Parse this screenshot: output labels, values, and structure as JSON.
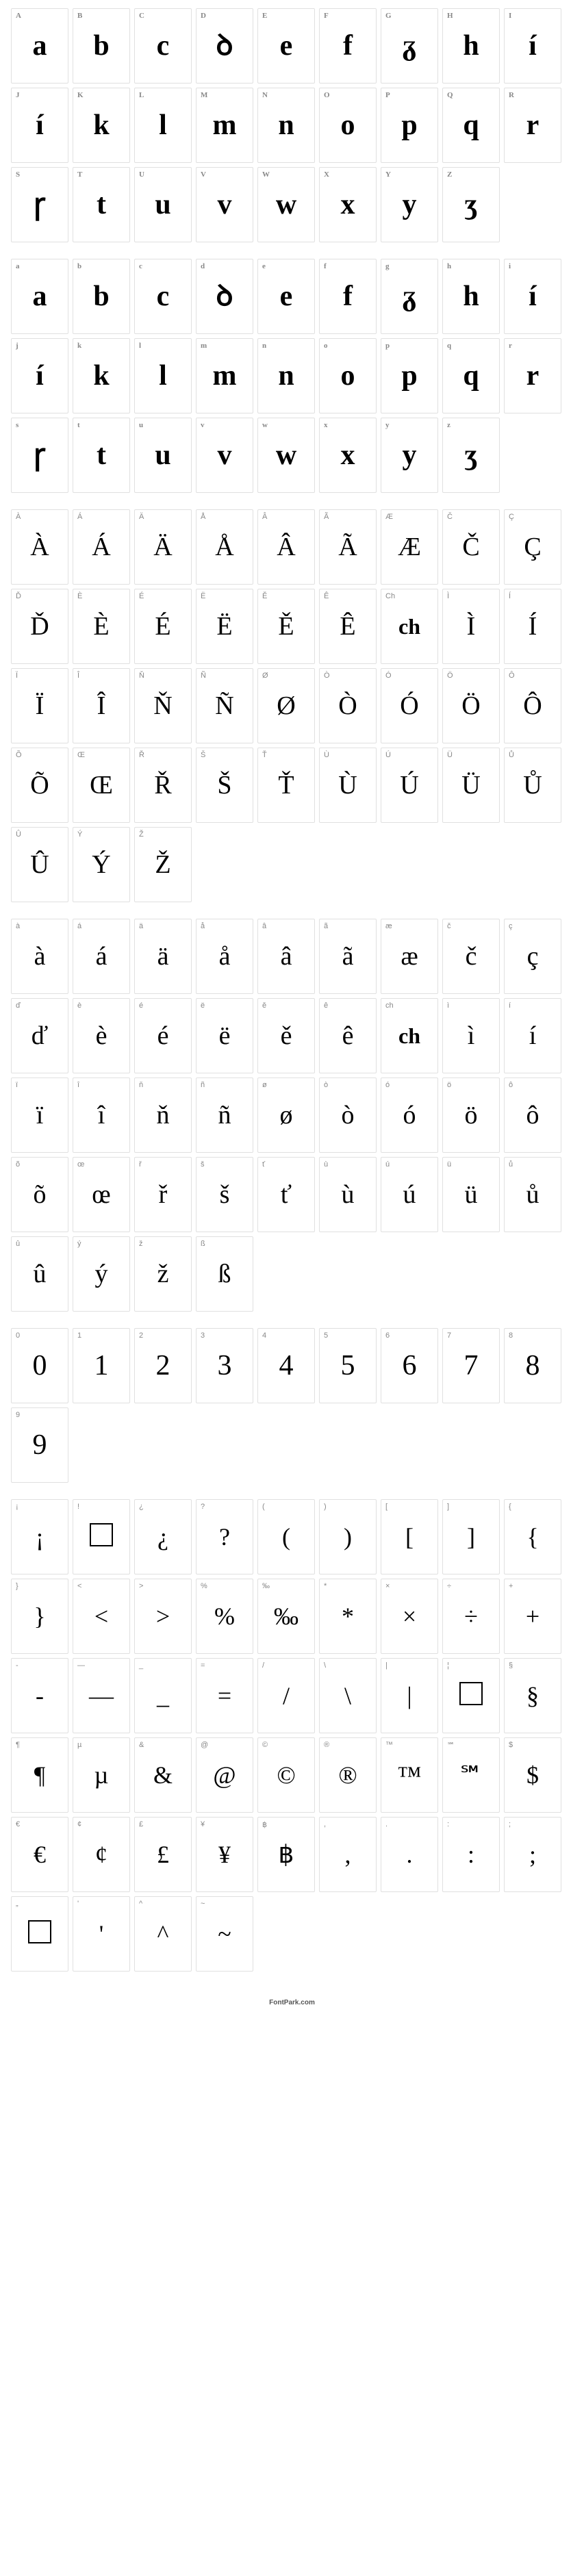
{
  "footer_text": "FontPark.com",
  "sections": [
    {
      "type": "uppercase-stylized",
      "cells": [
        {
          "label": "A",
          "glyph": "a"
        },
        {
          "label": "B",
          "glyph": "b"
        },
        {
          "label": "C",
          "glyph": "c"
        },
        {
          "label": "D",
          "glyph": "ꝺ"
        },
        {
          "label": "E",
          "glyph": "e"
        },
        {
          "label": "F",
          "glyph": "f"
        },
        {
          "label": "G",
          "glyph": "ᵹ"
        },
        {
          "label": "H",
          "glyph": "h"
        },
        {
          "label": "I",
          "glyph": "í"
        },
        {
          "label": "J",
          "glyph": "í"
        },
        {
          "label": "K",
          "glyph": "k"
        },
        {
          "label": "L",
          "glyph": "l"
        },
        {
          "label": "M",
          "glyph": "m"
        },
        {
          "label": "N",
          "glyph": "n"
        },
        {
          "label": "O",
          "glyph": "o"
        },
        {
          "label": "P",
          "glyph": "p"
        },
        {
          "label": "Q",
          "glyph": "q"
        },
        {
          "label": "R",
          "glyph": "r"
        },
        {
          "label": "S",
          "glyph": "ꞅ"
        },
        {
          "label": "T",
          "glyph": "t"
        },
        {
          "label": "U",
          "glyph": "u"
        },
        {
          "label": "V",
          "glyph": "v"
        },
        {
          "label": "W",
          "glyph": "w"
        },
        {
          "label": "X",
          "glyph": "x"
        },
        {
          "label": "Y",
          "glyph": "y"
        },
        {
          "label": "Z",
          "glyph": "ʒ"
        }
      ]
    },
    {
      "type": "lowercase-stylized",
      "cells": [
        {
          "label": "a",
          "glyph": "a"
        },
        {
          "label": "b",
          "glyph": "b"
        },
        {
          "label": "c",
          "glyph": "c"
        },
        {
          "label": "d",
          "glyph": "ꝺ"
        },
        {
          "label": "e",
          "glyph": "e"
        },
        {
          "label": "f",
          "glyph": "f"
        },
        {
          "label": "g",
          "glyph": "ᵹ"
        },
        {
          "label": "h",
          "glyph": "h"
        },
        {
          "label": "i",
          "glyph": "í"
        },
        {
          "label": "j",
          "glyph": "í"
        },
        {
          "label": "k",
          "glyph": "k"
        },
        {
          "label": "l",
          "glyph": "l"
        },
        {
          "label": "m",
          "glyph": "m"
        },
        {
          "label": "n",
          "glyph": "n"
        },
        {
          "label": "o",
          "glyph": "o"
        },
        {
          "label": "p",
          "glyph": "p"
        },
        {
          "label": "q",
          "glyph": "q"
        },
        {
          "label": "r",
          "glyph": "r"
        },
        {
          "label": "s",
          "glyph": "ꞅ"
        },
        {
          "label": "t",
          "glyph": "t"
        },
        {
          "label": "u",
          "glyph": "u"
        },
        {
          "label": "v",
          "glyph": "v"
        },
        {
          "label": "w",
          "glyph": "w"
        },
        {
          "label": "x",
          "glyph": "x"
        },
        {
          "label": "y",
          "glyph": "y"
        },
        {
          "label": "z",
          "glyph": "ʒ"
        }
      ]
    },
    {
      "type": "accents-upper",
      "cells": [
        {
          "label": "À",
          "glyph": "À"
        },
        {
          "label": "Á",
          "glyph": "Á"
        },
        {
          "label": "Ä",
          "glyph": "Ä"
        },
        {
          "label": "Å",
          "glyph": "Å"
        },
        {
          "label": "Â",
          "glyph": "Â"
        },
        {
          "label": "Ã",
          "glyph": "Ã"
        },
        {
          "label": "Æ",
          "glyph": "Æ"
        },
        {
          "label": "Č",
          "glyph": "Č"
        },
        {
          "label": "Ç",
          "glyph": "Ç"
        },
        {
          "label": "Ď",
          "glyph": "Ď"
        },
        {
          "label": "È",
          "glyph": "È"
        },
        {
          "label": "É",
          "glyph": "É"
        },
        {
          "label": "Ë",
          "glyph": "Ë"
        },
        {
          "label": "Ě",
          "glyph": "Ě"
        },
        {
          "label": "Ê",
          "glyph": "Ê"
        },
        {
          "label": "Ch",
          "glyph": "ch"
        },
        {
          "label": "Ì",
          "glyph": "Ì"
        },
        {
          "label": "Í",
          "glyph": "Í"
        },
        {
          "label": "Ï",
          "glyph": "Ï"
        },
        {
          "label": "Î",
          "glyph": "Î"
        },
        {
          "label": "Ň",
          "glyph": "Ň"
        },
        {
          "label": "Ñ",
          "glyph": "Ñ"
        },
        {
          "label": "Ø",
          "glyph": "Ø"
        },
        {
          "label": "Ò",
          "glyph": "Ò"
        },
        {
          "label": "Ó",
          "glyph": "Ó"
        },
        {
          "label": "Ö",
          "glyph": "Ö"
        },
        {
          "label": "Ô",
          "glyph": "Ô"
        },
        {
          "label": "Õ",
          "glyph": "Õ"
        },
        {
          "label": "Œ",
          "glyph": "Œ"
        },
        {
          "label": "Ř",
          "glyph": "Ř"
        },
        {
          "label": "Š",
          "glyph": "Š"
        },
        {
          "label": "Ť",
          "glyph": "Ť"
        },
        {
          "label": "Ù",
          "glyph": "Ù"
        },
        {
          "label": "Ú",
          "glyph": "Ú"
        },
        {
          "label": "Ü",
          "glyph": "Ü"
        },
        {
          "label": "Ů",
          "glyph": "Ů"
        },
        {
          "label": "Û",
          "glyph": "Û"
        },
        {
          "label": "Ý",
          "glyph": "Ý"
        },
        {
          "label": "Ž",
          "glyph": "Ž"
        }
      ]
    },
    {
      "type": "accents-lower",
      "cells": [
        {
          "label": "à",
          "glyph": "à"
        },
        {
          "label": "á",
          "glyph": "á"
        },
        {
          "label": "ä",
          "glyph": "ä"
        },
        {
          "label": "å",
          "glyph": "å"
        },
        {
          "label": "â",
          "glyph": "â"
        },
        {
          "label": "ã",
          "glyph": "ã"
        },
        {
          "label": "æ",
          "glyph": "æ"
        },
        {
          "label": "č",
          "glyph": "č"
        },
        {
          "label": "ç",
          "glyph": "ç"
        },
        {
          "label": "ď",
          "glyph": "ď"
        },
        {
          "label": "è",
          "glyph": "è"
        },
        {
          "label": "é",
          "glyph": "é"
        },
        {
          "label": "ë",
          "glyph": "ë"
        },
        {
          "label": "ě",
          "glyph": "ě"
        },
        {
          "label": "ê",
          "glyph": "ê"
        },
        {
          "label": "ch",
          "glyph": "ch"
        },
        {
          "label": "ì",
          "glyph": "ì"
        },
        {
          "label": "í",
          "glyph": "í"
        },
        {
          "label": "ï",
          "glyph": "ï"
        },
        {
          "label": "î",
          "glyph": "î"
        },
        {
          "label": "ň",
          "glyph": "ň"
        },
        {
          "label": "ñ",
          "glyph": "ñ"
        },
        {
          "label": "ø",
          "glyph": "ø"
        },
        {
          "label": "ò",
          "glyph": "ò"
        },
        {
          "label": "ó",
          "glyph": "ó"
        },
        {
          "label": "ö",
          "glyph": "ö"
        },
        {
          "label": "ô",
          "glyph": "ô"
        },
        {
          "label": "õ",
          "glyph": "õ"
        },
        {
          "label": "œ",
          "glyph": "œ"
        },
        {
          "label": "ř",
          "glyph": "ř"
        },
        {
          "label": "š",
          "glyph": "š"
        },
        {
          "label": "ť",
          "glyph": "ť"
        },
        {
          "label": "ù",
          "glyph": "ù"
        },
        {
          "label": "ú",
          "glyph": "ú"
        },
        {
          "label": "ü",
          "glyph": "ü"
        },
        {
          "label": "ů",
          "glyph": "ů"
        },
        {
          "label": "û",
          "glyph": "û"
        },
        {
          "label": "ý",
          "glyph": "ý"
        },
        {
          "label": "ž",
          "glyph": "ž"
        },
        {
          "label": "ß",
          "glyph": "ß"
        }
      ]
    },
    {
      "type": "digits",
      "cells": [
        {
          "label": "0",
          "glyph": "0"
        },
        {
          "label": "1",
          "glyph": "1"
        },
        {
          "label": "2",
          "glyph": "2"
        },
        {
          "label": "3",
          "glyph": "3"
        },
        {
          "label": "4",
          "glyph": "4"
        },
        {
          "label": "5",
          "glyph": "5"
        },
        {
          "label": "6",
          "glyph": "6"
        },
        {
          "label": "7",
          "glyph": "7"
        },
        {
          "label": "8",
          "glyph": "8"
        },
        {
          "label": "9",
          "glyph": "9"
        }
      ]
    },
    {
      "type": "symbols",
      "cells": [
        {
          "label": "¡",
          "glyph": "¡"
        },
        {
          "label": "!",
          "glyph": "□"
        },
        {
          "label": "¿",
          "glyph": "¿"
        },
        {
          "label": "?",
          "glyph": "?"
        },
        {
          "label": "(",
          "glyph": "("
        },
        {
          "label": ")",
          "glyph": ")"
        },
        {
          "label": "[",
          "glyph": "["
        },
        {
          "label": "]",
          "glyph": "]"
        },
        {
          "label": "{",
          "glyph": "{"
        },
        {
          "label": "}",
          "glyph": "}"
        },
        {
          "label": "<",
          "glyph": "<"
        },
        {
          "label": ">",
          "glyph": ">"
        },
        {
          "label": "%",
          "glyph": "%"
        },
        {
          "label": "‰",
          "glyph": "‰"
        },
        {
          "label": "*",
          "glyph": "*"
        },
        {
          "label": "×",
          "glyph": "×"
        },
        {
          "label": "÷",
          "glyph": "÷"
        },
        {
          "label": "+",
          "glyph": "+"
        },
        {
          "label": "-",
          "glyph": "-"
        },
        {
          "label": "—",
          "glyph": "—"
        },
        {
          "label": "_",
          "glyph": "_"
        },
        {
          "label": "=",
          "glyph": "="
        },
        {
          "label": "/",
          "glyph": "/"
        },
        {
          "label": "\\\\",
          "glyph": "\\\\"
        },
        {
          "label": "|",
          "glyph": "|"
        },
        {
          "label": "¦",
          "glyph": "□"
        },
        {
          "label": "§",
          "glyph": "§"
        },
        {
          "label": "¶",
          "glyph": "¶"
        },
        {
          "label": "µ",
          "glyph": "µ"
        },
        {
          "label": "&",
          "glyph": "&"
        },
        {
          "label": "@",
          "glyph": "@"
        },
        {
          "label": "©",
          "glyph": "©"
        },
        {
          "label": "®",
          "glyph": "®"
        },
        {
          "label": "™",
          "glyph": "™"
        },
        {
          "label": "℠",
          "glyph": "℠"
        },
        {
          "label": "$",
          "glyph": "$"
        },
        {
          "label": "€",
          "glyph": "€"
        },
        {
          "label": "¢",
          "glyph": "¢"
        },
        {
          "label": "£",
          "glyph": "£"
        },
        {
          "label": "¥",
          "glyph": "¥"
        },
        {
          "label": "฿",
          "glyph": "฿"
        },
        {
          "label": ",",
          "glyph": ","
        },
        {
          "label": ".",
          "glyph": "."
        },
        {
          "label": ":",
          "glyph": ":"
        },
        {
          "label": ";",
          "glyph": ";"
        },
        {
          "label": "„",
          "glyph": "□"
        },
        {
          "label": "'",
          "glyph": "'"
        },
        {
          "label": "^",
          "glyph": "^"
        },
        {
          "label": "~",
          "glyph": "~"
        }
      ]
    }
  ]
}
